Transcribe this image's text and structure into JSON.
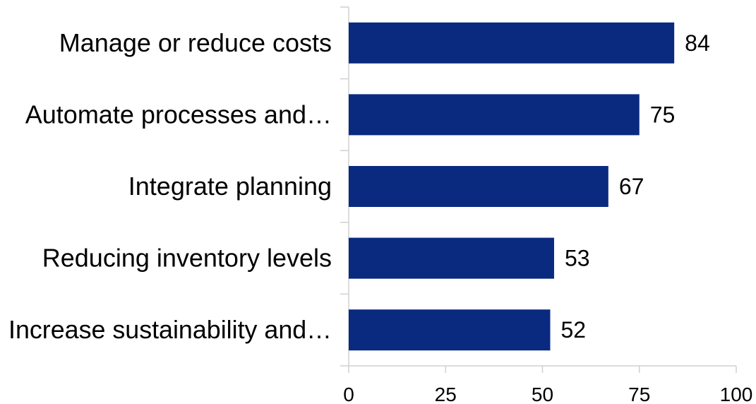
{
  "chart_data": {
    "type": "bar",
    "orientation": "horizontal",
    "categories": [
      "Manage or reduce costs",
      "Automate processes and…",
      "Integrate planning",
      "Reducing inventory levels",
      "Increase sustainability and…"
    ],
    "values": [
      84,
      75,
      67,
      53,
      52
    ],
    "xlim": [
      0,
      100
    ],
    "xticks": [
      0,
      25,
      50,
      75,
      100
    ],
    "bar_color": "#0A2A80",
    "grid": false,
    "legend": "none",
    "data_labels": true
  }
}
